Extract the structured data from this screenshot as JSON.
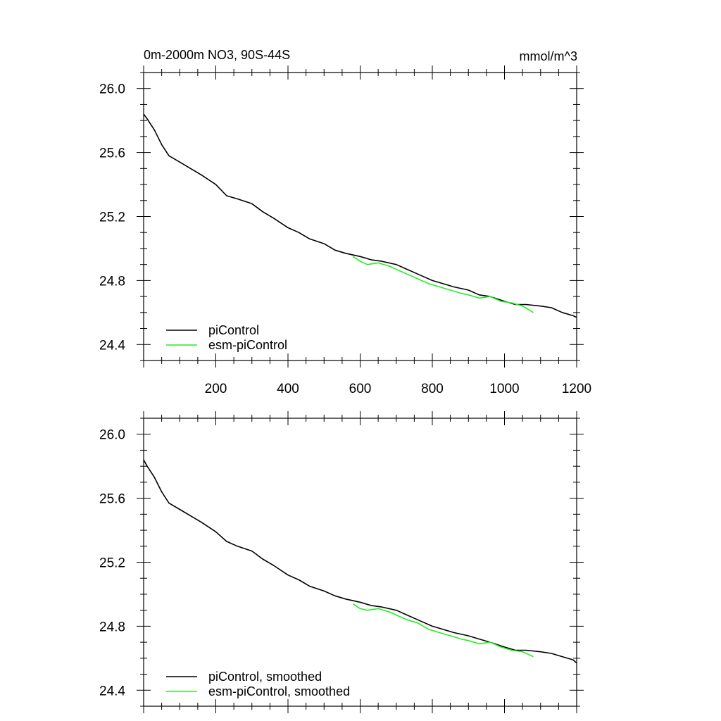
{
  "colors": {
    "black_series": "#000000",
    "green_series": "#22ee22",
    "axes": "#000000"
  },
  "chart_data": [
    {
      "type": "line",
      "title_left": "0m-2000m NO3, 90S-44S",
      "title_right": "mmol/m^3",
      "xlabel": "",
      "ylabel": "",
      "xlim": [
        0,
        1200
      ],
      "ylim": [
        24.3,
        26.1
      ],
      "xticks": [
        "200",
        "400",
        "600",
        "800",
        "1000",
        "1200"
      ],
      "yticks": [
        "24.4",
        "24.8",
        "25.2",
        "25.6",
        "26.0"
      ],
      "grid": false,
      "legend_position": "bottom-left",
      "series": [
        {
          "name": "piControl",
          "color": "#000000",
          "x": [
            0,
            10,
            30,
            50,
            70,
            100,
            130,
            160,
            200,
            230,
            260,
            300,
            330,
            360,
            400,
            430,
            460,
            500,
            530,
            560,
            600,
            630,
            660,
            700,
            730,
            760,
            800,
            830,
            860,
            900,
            930,
            960,
            1000,
            1030,
            1060,
            1100,
            1130,
            1160,
            1190,
            1200
          ],
          "y": [
            25.84,
            25.81,
            25.74,
            25.65,
            25.58,
            25.54,
            25.5,
            25.46,
            25.4,
            25.33,
            25.31,
            25.28,
            25.23,
            25.19,
            25.13,
            25.1,
            25.06,
            25.03,
            24.99,
            24.97,
            24.95,
            24.93,
            24.92,
            24.9,
            24.87,
            24.84,
            24.8,
            24.78,
            24.76,
            24.74,
            24.71,
            24.7,
            24.67,
            24.65,
            24.65,
            24.64,
            24.63,
            24.6,
            24.58,
            24.57
          ]
        },
        {
          "name": "esm-piControl",
          "color": "#22ee22",
          "x": [
            580,
            600,
            620,
            650,
            680,
            700,
            730,
            760,
            790,
            820,
            850,
            880,
            900,
            930,
            960,
            990,
            1020,
            1050,
            1080
          ],
          "y": [
            24.95,
            24.92,
            24.9,
            24.91,
            24.89,
            24.87,
            24.84,
            24.81,
            24.78,
            24.76,
            24.74,
            24.72,
            24.71,
            24.69,
            24.7,
            24.67,
            24.66,
            24.64,
            24.6
          ]
        }
      ]
    },
    {
      "type": "line",
      "title_left": "",
      "title_right": "",
      "xlabel": "",
      "ylabel": "",
      "xlim": [
        0,
        1200
      ],
      "ylim": [
        24.3,
        26.1
      ],
      "yticks": [
        "24.4",
        "24.8",
        "25.2",
        "25.6",
        "26.0"
      ],
      "grid": false,
      "legend_position": "bottom-left",
      "series": [
        {
          "name": "piControl, smoothed",
          "color": "#000000",
          "x": [
            0,
            10,
            30,
            50,
            70,
            100,
            130,
            160,
            200,
            230,
            260,
            300,
            330,
            360,
            400,
            430,
            460,
            500,
            530,
            560,
            600,
            630,
            660,
            700,
            730,
            760,
            800,
            830,
            860,
            900,
            930,
            960,
            1000,
            1030,
            1060,
            1100,
            1130,
            1160,
            1190,
            1200
          ],
          "y": [
            25.84,
            25.8,
            25.73,
            25.64,
            25.57,
            25.53,
            25.49,
            25.45,
            25.39,
            25.33,
            25.3,
            25.27,
            25.22,
            25.18,
            25.12,
            25.09,
            25.05,
            25.02,
            24.99,
            24.97,
            24.95,
            24.93,
            24.92,
            24.9,
            24.87,
            24.84,
            24.8,
            24.78,
            24.76,
            24.74,
            24.72,
            24.7,
            24.67,
            24.65,
            24.65,
            24.64,
            24.63,
            24.61,
            24.59,
            24.57
          ]
        },
        {
          "name": "esm-piControl, smoothed",
          "color": "#22ee22",
          "x": [
            580,
            600,
            620,
            650,
            680,
            700,
            730,
            760,
            790,
            820,
            850,
            880,
            900,
            930,
            960,
            990,
            1020,
            1050,
            1080
          ],
          "y": [
            24.94,
            24.91,
            24.9,
            24.91,
            24.89,
            24.87,
            24.84,
            24.82,
            24.78,
            24.76,
            24.74,
            24.72,
            24.71,
            24.69,
            24.7,
            24.67,
            24.65,
            24.64,
            24.61
          ]
        }
      ]
    }
  ]
}
